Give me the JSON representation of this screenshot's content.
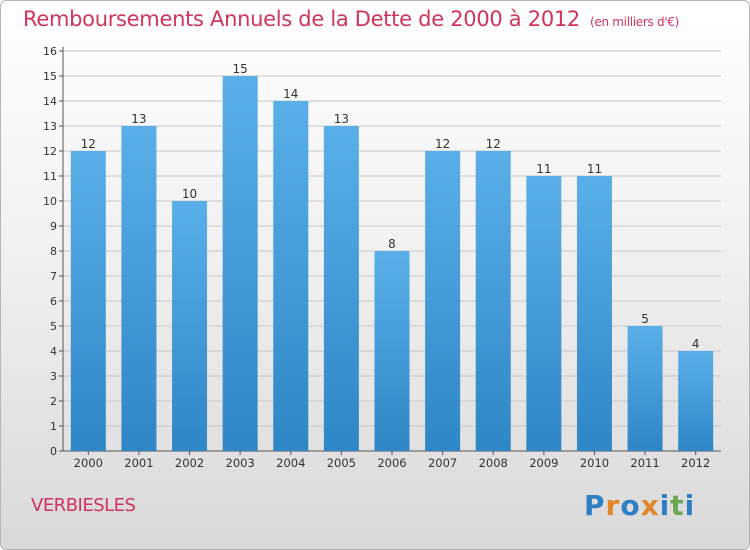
{
  "header": {
    "title": "Remboursements Annuels de la Dette de 2000 à 2012",
    "unit": "(en milliers d'€)"
  },
  "footer": {
    "commune": "VERBIESLES",
    "brand": "Proxiti"
  },
  "colors": {
    "title": "#d1345b",
    "bar_top": "#5aafe8",
    "bar_bottom": "#2f86c6",
    "grid": "#c8c8c8",
    "brand_letters": [
      "#2e7fc4",
      "#e0872b",
      "#2e7fc4",
      "#e0872b",
      "#2e7fc4",
      "#6aa84f",
      "#2e7fc4"
    ]
  },
  "chart_data": {
    "type": "bar",
    "title": "Remboursements Annuels de la Dette de 2000 à 2012",
    "subtitle": "(en milliers d'€)",
    "xlabel": "",
    "ylabel": "",
    "categories": [
      "2000",
      "2001",
      "2002",
      "2003",
      "2004",
      "2005",
      "2006",
      "2007",
      "2008",
      "2009",
      "2010",
      "2011",
      "2012"
    ],
    "values": [
      12,
      13,
      10,
      15,
      14,
      13,
      8,
      12,
      12,
      11,
      11,
      5,
      4
    ],
    "ylim": [
      0,
      16
    ],
    "yticks": [
      0,
      1,
      2,
      3,
      4,
      5,
      6,
      7,
      8,
      9,
      10,
      11,
      12,
      13,
      14,
      15,
      16
    ],
    "grid": true,
    "data_labels": true
  }
}
